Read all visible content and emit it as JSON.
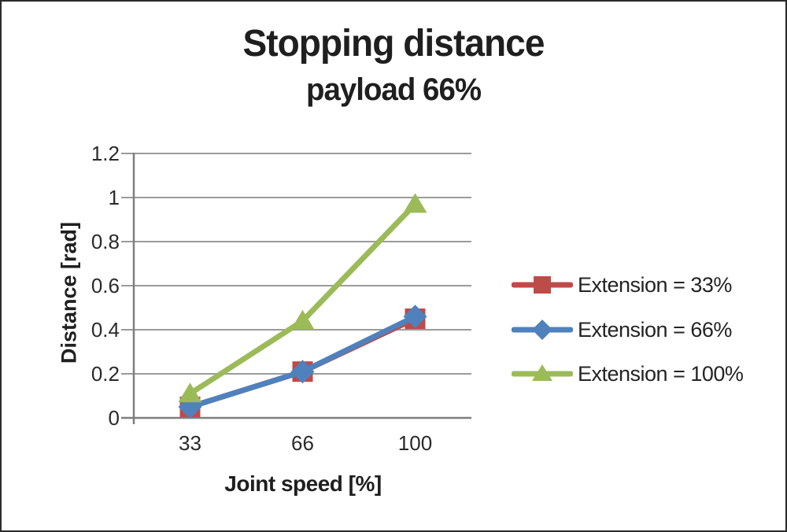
{
  "window": {
    "background": "#ffffff",
    "border_color": "#2b2b2b"
  },
  "chart_data": {
    "type": "line",
    "title": "Stopping distance",
    "subtitle": "payload 66%",
    "xlabel": "Joint speed [%]",
    "ylabel": "Distance [rad]",
    "x_axis_type": "category",
    "categories": [
      "33",
      "66",
      "100"
    ],
    "yticks": [
      "1.2",
      "1",
      "0.8",
      "0.6",
      "0.4",
      "0.2",
      "0"
    ],
    "ylim": [
      0,
      1.2
    ],
    "grid": true,
    "legend_position": "right",
    "colors": {
      "grid": "#9b9b9b",
      "axis": "#7f7f7f",
      "text": "#1f1f1f"
    },
    "series": [
      {
        "name": "Extension = 33%",
        "marker": "square",
        "color": "#BE4B48",
        "values": [
          0.05,
          0.21,
          0.45
        ]
      },
      {
        "name": "Extension = 66%",
        "marker": "diamond",
        "color": "#4F81BD",
        "values": [
          0.05,
          0.21,
          0.46
        ]
      },
      {
        "name": "Extension = 100%",
        "marker": "triangle",
        "color": "#9BBB59",
        "values": [
          0.11,
          0.44,
          0.97
        ]
      }
    ]
  }
}
